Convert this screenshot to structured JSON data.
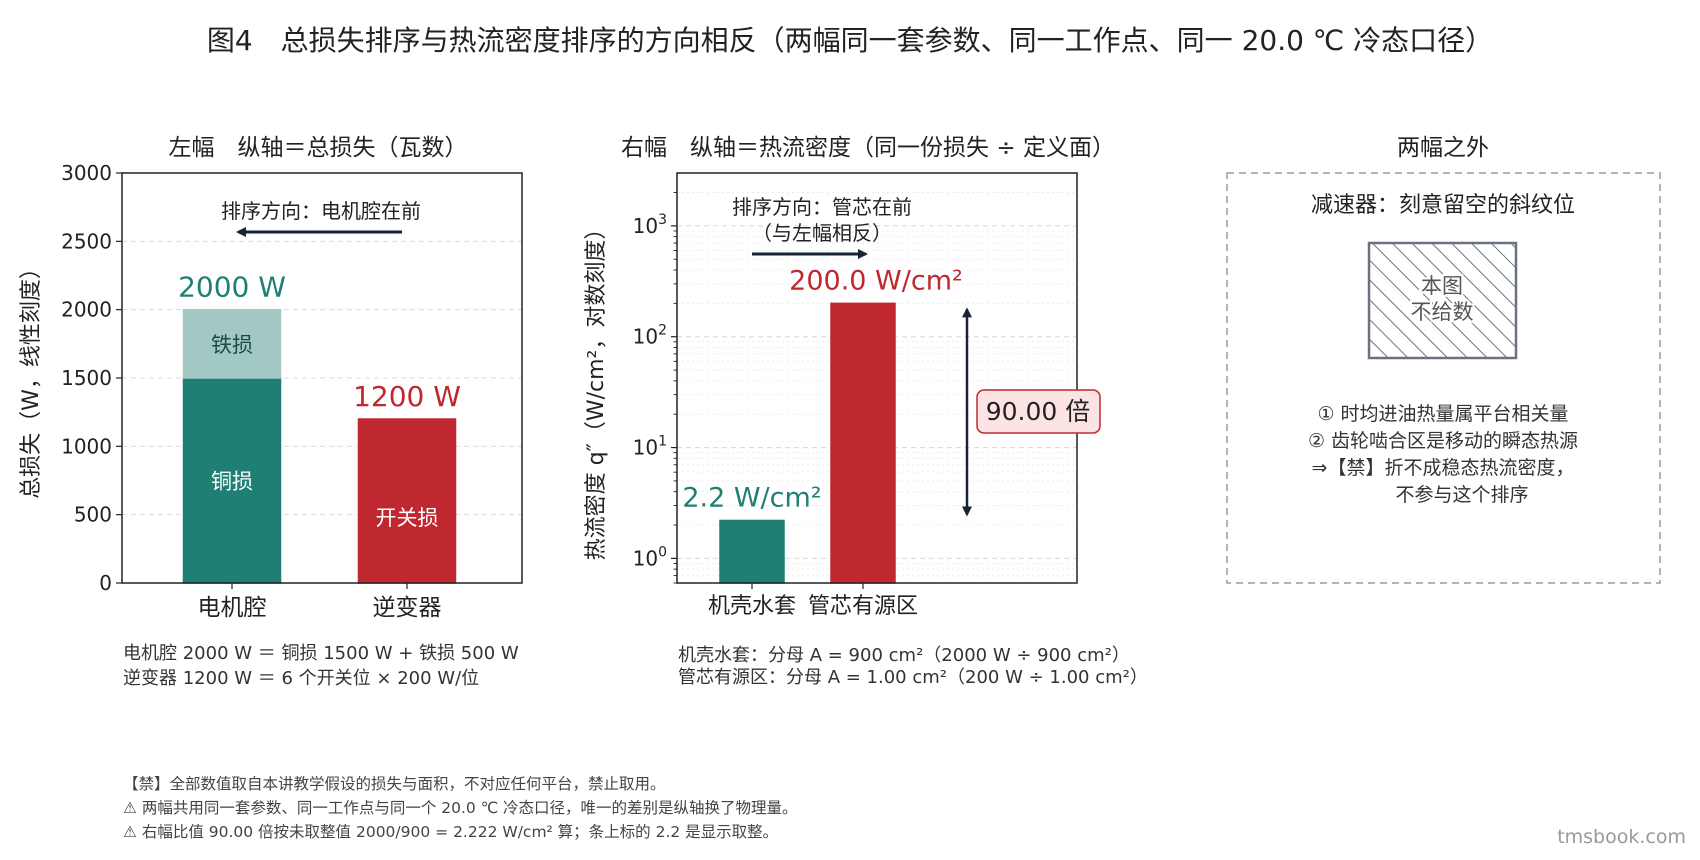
{
  "figure": {
    "title": "图4　总损失排序与热流密度排序的方向相反（两幅同一套参数、同一工作点、同一 20.0 ℃ 冷态口径）",
    "watermark": "tmsbook.com",
    "footnotes": [
      "【禁】全部数值取自本讲教学假设的损失与面积，不对应任何平台，禁止取用。",
      "⚠ 两幅共用同一套参数、同一工作点与同一个 20.0 ℃ 冷态口径，唯一的差别是纵轴换了物理量。",
      "⚠ 右幅比值 90.00 倍按未取整值 2000/900 = 2.222 W/cm² 算；条上标的 2.2 是显示取整。"
    ]
  },
  "left_panel": {
    "subtitle": "左幅　纵轴＝总损失（瓦数）",
    "arrow_label": "排序方向：电机腔在前",
    "notes": [
      "电机腔 2000 W ＝ 铜损 1500 W + 铁损 500 W",
      "逆变器 1200 W ＝ 6 个开关位 × 200 W/位"
    ]
  },
  "right_panel": {
    "subtitle": "右幅　纵轴＝热流密度（同一份损失 ÷ 定义面）",
    "arrow_label_lines": [
      "排序方向：管芯在前",
      "（与左幅相反）"
    ],
    "ratio_label": "90.00 倍",
    "notes": [
      "机壳水套：分母 A = 900 cm²（2000 W ÷ 900 cm²）",
      "管芯有源区：分母 A = 1.00 cm²（200 W ÷ 1.00 cm²）"
    ]
  },
  "third_panel": {
    "subtitle": "两幅之外",
    "heading": "减速器：刻意留空的斜纹位",
    "hatch_label_lines": [
      "本图",
      "不给数"
    ],
    "notes": [
      "① 时均进油热量属平台相关量",
      "② 齿轮啮合区是移动的瞬态热源",
      "⇒【禁】折不成稳态热流密度，",
      "　　不参与这个排序"
    ]
  },
  "chart_data": [
    {
      "type": "bar",
      "stacked": true,
      "ylabel": "总损失（W，线性刻度）",
      "ylim": [
        0,
        3000
      ],
      "yticks": [
        0,
        500,
        1000,
        1500,
        2000,
        2500,
        3000
      ],
      "grid": true,
      "categories": [
        "电机腔",
        "逆变器"
      ],
      "segments": [
        {
          "category": "电机腔",
          "name": "铜损",
          "value": 1500,
          "color": "#1f7f74"
        },
        {
          "category": "电机腔",
          "name": "铁损",
          "value": 500,
          "color": "#a2c8c3"
        },
        {
          "category": "逆变器",
          "name": "开关损",
          "value": 1200,
          "color": "#c0282f"
        }
      ],
      "totals": [
        {
          "category": "电机腔",
          "label": "2000 W",
          "color": "#1f7f74"
        },
        {
          "category": "逆变器",
          "label": "1200 W",
          "color": "#c0282f"
        }
      ]
    },
    {
      "type": "bar",
      "yscale": "log",
      "ylabel": "热流密度 q″（W/cm²，对数刻度）",
      "ylim": [
        0.6,
        3000
      ],
      "yticks": [
        1,
        10,
        100,
        1000
      ],
      "ytick_labels": [
        {
          "base": "10",
          "exp": "0"
        },
        {
          "base": "10",
          "exp": "1"
        },
        {
          "base": "10",
          "exp": "2"
        },
        {
          "base": "10",
          "exp": "3"
        }
      ],
      "grid": true,
      "categories": [
        "机壳水套",
        "管芯有源区"
      ],
      "values": [
        2.2,
        200.0
      ],
      "colors": [
        "#1f7f74",
        "#c0282f"
      ],
      "value_labels": [
        "2.2 W/cm²",
        "200.0 W/cm²"
      ],
      "ratio": 90.0
    }
  ]
}
